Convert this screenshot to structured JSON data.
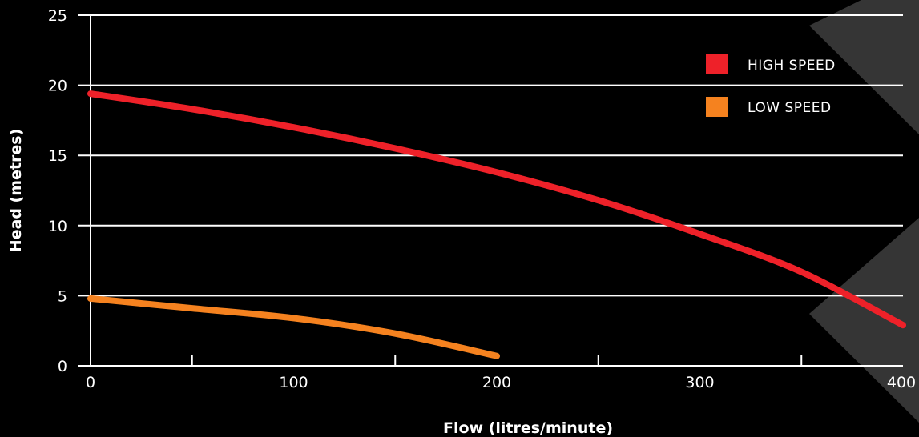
{
  "chart_data": {
    "type": "line",
    "xlabel": "Flow (litres/minute)",
    "ylabel": "Head (metres)",
    "xlim": [
      0,
      400
    ],
    "ylim": [
      0,
      25
    ],
    "x_ticks": [
      0,
      100,
      200,
      300,
      400
    ],
    "x_minor_ticks": [
      50,
      150,
      250,
      350
    ],
    "y_ticks": [
      0,
      5,
      10,
      15,
      20,
      25
    ],
    "grid": "horizontal",
    "legend_position": "top-right",
    "series": [
      {
        "name": "HIGH SPEED",
        "color": "#ee2129",
        "points": [
          [
            0,
            19.4
          ],
          [
            50,
            18.3
          ],
          [
            100,
            17.0
          ],
          [
            150,
            15.5
          ],
          [
            200,
            13.8
          ],
          [
            250,
            11.8
          ],
          [
            300,
            9.4
          ],
          [
            350,
            6.7
          ],
          [
            400,
            2.9
          ]
        ]
      },
      {
        "name": "LOW SPEED",
        "color": "#f5821f",
        "points": [
          [
            0,
            4.8
          ],
          [
            50,
            4.1
          ],
          [
            100,
            3.4
          ],
          [
            150,
            2.3
          ],
          [
            200,
            0.7
          ]
        ]
      }
    ]
  },
  "background": {
    "color": "#000000",
    "band_color": "#353535",
    "chevron_color": "#000000"
  }
}
